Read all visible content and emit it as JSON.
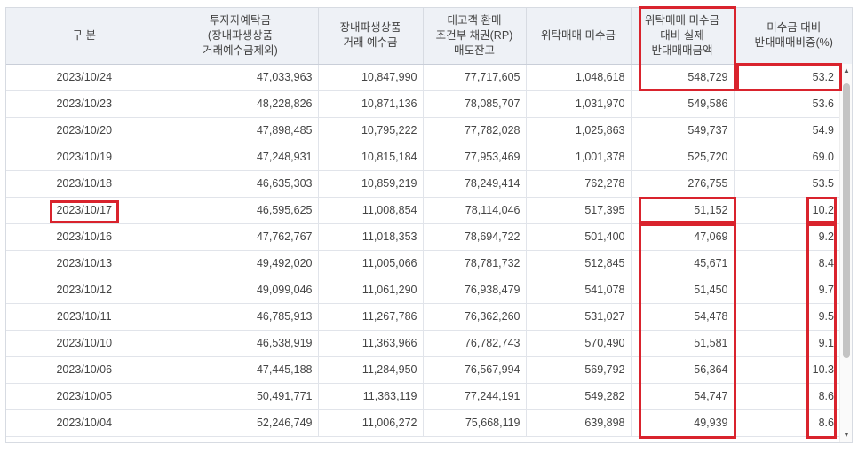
{
  "table": {
    "headers": [
      "구 분",
      "투자자예탁금\n(장내파생상품\n거래예수금제외)",
      "장내파생상품\n거래 예수금",
      "대고객 환매\n조건부 채권(RP)\n매도잔고",
      "위탁매매 미수금",
      "위탁매매 미수금\n대비 실제\n반대매매금액",
      "미수금 대비\n반대매매비중(%)"
    ],
    "rows": [
      [
        "2023/10/24",
        "47,033,963",
        "10,847,990",
        "77,717,605",
        "1,048,618",
        "548,729",
        "53.2"
      ],
      [
        "2023/10/23",
        "48,228,826",
        "10,871,136",
        "78,085,707",
        "1,031,970",
        "549,586",
        "53.6"
      ],
      [
        "2023/10/20",
        "47,898,485",
        "10,795,222",
        "77,782,028",
        "1,025,863",
        "549,737",
        "54.9"
      ],
      [
        "2023/10/19",
        "47,248,931",
        "10,815,184",
        "77,953,469",
        "1,001,378",
        "525,720",
        "69.0"
      ],
      [
        "2023/10/18",
        "46,635,303",
        "10,859,219",
        "78,249,414",
        "762,278",
        "276,755",
        "53.5"
      ],
      [
        "2023/10/17",
        "46,595,625",
        "11,008,854",
        "78,114,046",
        "517,395",
        "51,152",
        "10.2"
      ],
      [
        "2023/10/16",
        "47,762,767",
        "11,018,353",
        "78,694,722",
        "501,400",
        "47,069",
        "9.2"
      ],
      [
        "2023/10/13",
        "49,492,020",
        "11,005,066",
        "78,781,732",
        "512,845",
        "45,671",
        "8.4"
      ],
      [
        "2023/10/12",
        "49,099,046",
        "11,061,290",
        "76,938,479",
        "541,078",
        "51,450",
        "9.7"
      ],
      [
        "2023/10/11",
        "46,785,913",
        "11,267,786",
        "76,362,260",
        "531,027",
        "54,478",
        "9.5"
      ],
      [
        "2023/10/10",
        "46,538,919",
        "11,363,966",
        "76,782,743",
        "570,490",
        "51,581",
        "9.1"
      ],
      [
        "2023/10/06",
        "47,445,188",
        "11,284,950",
        "76,567,994",
        "569,792",
        "56,364",
        "10.3"
      ],
      [
        "2023/10/05",
        "50,491,771",
        "11,363,119",
        "77,244,191",
        "549,282",
        "54,747",
        "8.6"
      ],
      [
        "2023/10/04",
        "52,246,749",
        "11,006,272",
        "75,668,119",
        "639,898",
        "49,939",
        "8.6"
      ]
    ]
  },
  "scrollbar": {
    "up_icon": "▲",
    "down_icon": "▼"
  },
  "colors": {
    "highlight": "#d9232d",
    "header_bg": "#eef1f6"
  }
}
